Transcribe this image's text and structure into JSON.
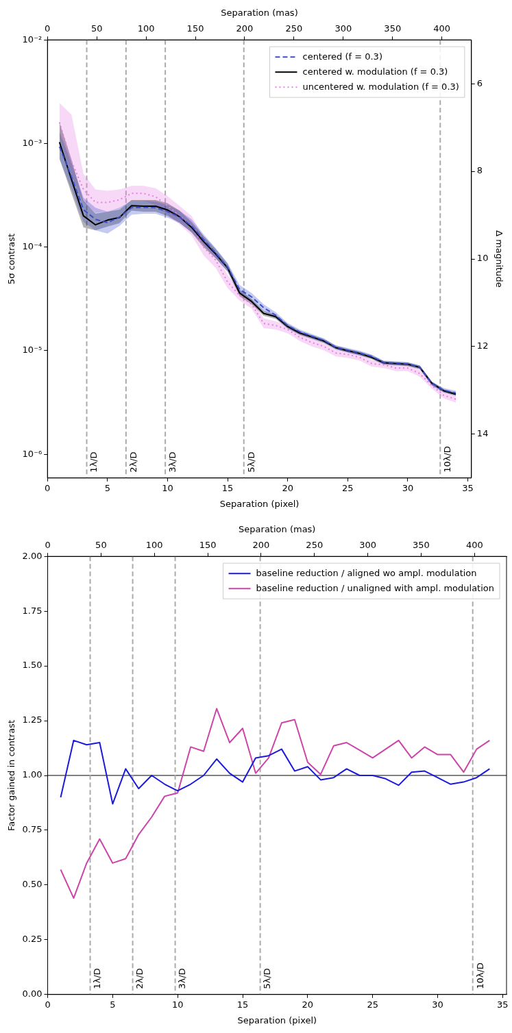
{
  "chart_data": [
    {
      "type": "line",
      "xlabel": "Separation (pixel)",
      "x2label": "Separation (mas)",
      "ylabel": "5σ contrast",
      "y2label": "Δ magnitude",
      "x": [
        1,
        2,
        3,
        4,
        5,
        6,
        7,
        8,
        9,
        10,
        11,
        12,
        13,
        14,
        15,
        16,
        17,
        18,
        19,
        20,
        21,
        22,
        23,
        24,
        25,
        26,
        27,
        28,
        29,
        30,
        31,
        32,
        33,
        34
      ],
      "xlim": [
        0,
        35.3
      ],
      "xticks": [
        0,
        5,
        10,
        15,
        20,
        25,
        30,
        35
      ],
      "x2lim": [
        0,
        430
      ],
      "x2ticks": [
        0,
        50,
        100,
        150,
        200,
        250,
        300,
        350,
        400
      ],
      "log": "y",
      "ylim": [
        5.9e-07,
        0.01
      ],
      "yticks": [
        {
          "value": 1e-06,
          "label": "10⁻⁶"
        },
        {
          "value": 1e-05,
          "label": "10⁻⁵"
        },
        {
          "value": 0.0001,
          "label": "10⁻⁴"
        },
        {
          "value": 0.001,
          "label": "10⁻³"
        },
        {
          "value": 0.01,
          "label": "10⁻²"
        }
      ],
      "y2lim": [
        15,
        5
      ],
      "y2ticks": [
        6,
        8,
        10,
        12,
        14
      ],
      "legend": "top right",
      "series": [
        {
          "name": "centered (f = 0.3)",
          "color": "#3a4fd0",
          "line_style": "dashed",
          "values": [
            0.00093,
            0.00048,
            0.00023,
            0.000185,
            0.000172,
            0.000195,
            0.00024,
            0.000242,
            0.00024,
            0.00022,
            0.000195,
            0.00016,
            0.000118,
            8.8e-05,
            6.4e-05,
            3.9e-05,
            3.3e-05,
            2.6e-05,
            2.2e-05,
            1.75e-05,
            1.52e-05,
            1.38e-05,
            1.26e-05,
            1.08e-05,
            1.01e-05,
            9.5e-06,
            8.8e-06,
            7.7e-06,
            7.6e-06,
            7.45e-06,
            6.95e-06,
            4.8e-06,
            4.15e-06,
            3.9e-06
          ],
          "upper": [
            0.0013,
            0.00065,
            0.0003,
            0.00024,
            0.00022,
            0.00024,
            0.00028,
            0.00028,
            0.000275,
            0.000255,
            0.000225,
            0.000185,
            0.000133,
            9.8e-05,
            7e-05,
            4.3e-05,
            3.6e-05,
            2.8e-05,
            2.35e-05,
            1.85e-05,
            1.6e-05,
            1.45e-05,
            1.32e-05,
            1.13e-05,
            1.06e-05,
            1e-05,
            9.2e-06,
            8e-06,
            7.9e-06,
            7.75e-06,
            7.2e-06,
            5e-06,
            4.35e-06,
            4.1e-06
          ],
          "lower": [
            0.0007,
            0.00036,
            0.000175,
            0.000145,
            0.000135,
            0.00016,
            0.000205,
            0.00021,
            0.00021,
            0.000192,
            0.00017,
            0.00014,
            0.000105,
            7.9e-05,
            5.8e-05,
            3.5e-05,
            3e-05,
            2.4e-05,
            2.05e-05,
            1.65e-05,
            1.44e-05,
            1.31e-05,
            1.2e-05,
            1.03e-05,
            9.6e-06,
            9e-06,
            8.4e-06,
            7.4e-06,
            7.3e-06,
            7.15e-06,
            6.7e-06,
            4.6e-06,
            3.95e-06,
            3.7e-06
          ]
        },
        {
          "name": "centered w. modulation (f = 0.3)",
          "color": "#000000",
          "line_style": "solid",
          "values": [
            0.00103,
            0.00045,
            0.0002,
            0.000164,
            0.000182,
            0.000193,
            0.000251,
            0.000248,
            0.000248,
            0.000228,
            0.000196,
            0.000155,
            0.000113,
            8.6e-05,
            6.3e-05,
            3.6e-05,
            2.98e-05,
            2.29e-05,
            2.13e-05,
            1.71e-05,
            1.48e-05,
            1.36e-05,
            1.24e-05,
            1.07e-05,
            1e-05,
            9.4e-06,
            8.6e-06,
            7.65e-06,
            7.5e-06,
            7.4e-06,
            6.9e-06,
            4.85e-06,
            4.1e-06,
            3.8e-06
          ],
          "upper": [
            0.0016,
            0.0007,
            0.00028,
            0.00021,
            0.00022,
            0.00023,
            0.000285,
            0.000285,
            0.000285,
            0.000265,
            0.000225,
            0.000175,
            0.000128,
            9.6e-05,
            6.9e-05,
            3.9e-05,
            3.15e-05,
            2.42e-05,
            2.24e-05,
            1.8e-05,
            1.55e-05,
            1.42e-05,
            1.3e-05,
            1.12e-05,
            1.04e-05,
            9.8e-06,
            9e-06,
            7.95e-06,
            7.8e-06,
            7.7e-06,
            7.2e-06,
            5.05e-06,
            4.25e-06,
            3.95e-06
          ],
          "lower": [
            0.00072,
            0.00033,
            0.000155,
            0.000145,
            0.000158,
            0.00017,
            0.000225,
            0.00022,
            0.00022,
            0.0002,
            0.000172,
            0.000138,
            0.0001,
            7.8e-05,
            5.8e-05,
            3.35e-05,
            2.8e-05,
            2.17e-05,
            2.03e-05,
            1.63e-05,
            1.42e-05,
            1.3e-05,
            1.19e-05,
            1.03e-05,
            9.6e-06,
            9e-06,
            8.25e-06,
            7.35e-06,
            7.2e-06,
            7.1e-06,
            6.6e-06,
            4.65e-06,
            3.95e-06,
            3.65e-06
          ]
        },
        {
          "name": "uncentered w. modulation (f = 0.3)",
          "color": "#e67ee6",
          "line_style": "dotted",
          "values": [
            0.0016,
            0.00067,
            0.00036,
            0.00027,
            0.00027,
            0.000286,
            0.00033,
            0.00033,
            0.000306,
            0.00025,
            0.0002,
            0.00016,
            0.0001,
            7.5e-05,
            4.6e-05,
            3.4e-05,
            2.8e-05,
            1.83e-05,
            1.75e-05,
            1.6e-05,
            1.35e-05,
            1.2e-05,
            1.1e-05,
            9.5e-06,
            9.2e-06,
            8.6e-06,
            7.5e-06,
            7.3e-06,
            6.8e-06,
            6.8e-06,
            6e-06,
            4.6e-06,
            3.7e-06,
            3.4e-06
          ],
          "upper": [
            0.00246,
            0.0019,
            0.00051,
            0.00036,
            0.00035,
            0.00036,
            0.00039,
            0.00039,
            0.00037,
            0.00031,
            0.00025,
            0.0002,
            0.000125,
            9e-05,
            5.4e-05,
            3.8e-05,
            3.1e-05,
            2.05e-05,
            1.92e-05,
            1.75e-05,
            1.48e-05,
            1.31e-05,
            1.2e-05,
            1.03e-05,
            9.9e-06,
            9.3e-06,
            8.1e-06,
            7.8e-06,
            7.3e-06,
            7.3e-06,
            6.5e-06,
            4.9e-06,
            3.95e-06,
            3.65e-06
          ],
          "lower": [
            0.00115,
            0.0005,
            0.00027,
            0.000215,
            0.00022,
            0.000235,
            0.00028,
            0.00028,
            0.000255,
            0.000205,
            0.000165,
            0.00013,
            8.3e-05,
            6.3e-05,
            4e-05,
            3.05e-05,
            2.55e-05,
            1.65e-05,
            1.6e-05,
            1.47e-05,
            1.24e-05,
            1.1e-05,
            1.01e-05,
            8.8e-06,
            8.5e-06,
            8e-06,
            7e-06,
            6.8e-06,
            6.35e-06,
            6.35e-06,
            5.6e-06,
            4.3e-06,
            3.45e-06,
            3.15e-06
          ]
        }
      ],
      "ref_lines": [
        {
          "axis": "x",
          "value": 3.27,
          "label": "1λ/D",
          "color": "#aaaaaa",
          "line_style": "dashed"
        },
        {
          "axis": "x",
          "value": 6.54,
          "label": "2λ/D",
          "color": "#aaaaaa",
          "line_style": "dashed"
        },
        {
          "axis": "x",
          "value": 9.81,
          "label": "3λ/D",
          "color": "#aaaaaa",
          "line_style": "dashed"
        },
        {
          "axis": "x",
          "value": 16.35,
          "label": "5λ/D",
          "color": "#aaaaaa",
          "line_style": "dashed"
        },
        {
          "axis": "x",
          "value": 32.7,
          "label": "10λ/D",
          "color": "#aaaaaa",
          "line_style": "dashed"
        }
      ]
    },
    {
      "type": "line",
      "xlabel": "Separation (pixel)",
      "x2label": "Separation (mas)",
      "ylabel": "Factor gained in contrast",
      "x": [
        1,
        2,
        3,
        4,
        5,
        6,
        7,
        8,
        9,
        10,
        11,
        12,
        13,
        14,
        15,
        16,
        17,
        18,
        19,
        20,
        21,
        22,
        23,
        24,
        25,
        26,
        27,
        28,
        29,
        30,
        31,
        32,
        33,
        34
      ],
      "xlim": [
        0,
        35.3
      ],
      "xticks": [
        0,
        5,
        10,
        15,
        20,
        25,
        30,
        35
      ],
      "x2lim": [
        0,
        430
      ],
      "x2ticks": [
        0,
        50,
        100,
        150,
        200,
        250,
        300,
        350,
        400
      ],
      "ylim": [
        0,
        2
      ],
      "yticks": [
        {
          "value": 0,
          "label": "0.00"
        },
        {
          "value": 0.25,
          "label": "0.25"
        },
        {
          "value": 0.5,
          "label": "0.50"
        },
        {
          "value": 0.75,
          "label": "0.75"
        },
        {
          "value": 1,
          "label": "1.00"
        },
        {
          "value": 1.25,
          "label": "1.25"
        },
        {
          "value": 1.5,
          "label": "1.50"
        },
        {
          "value": 1.75,
          "label": "1.75"
        },
        {
          "value": 2,
          "label": "2.00"
        }
      ],
      "legend": "top right",
      "series": [
        {
          "name": "baseline reduction / aligned wo ampl. modulation",
          "color": "#1a1adb",
          "line_style": "solid",
          "values": [
            0.9,
            1.16,
            1.14,
            1.15,
            0.87,
            1.03,
            0.94,
            1.0,
            0.96,
            0.93,
            0.96,
            1.0,
            1.075,
            1.01,
            0.97,
            1.08,
            1.09,
            1.12,
            1.02,
            1.04,
            0.98,
            0.99,
            1.03,
            1.0,
            1.0,
            0.985,
            0.955,
            1.015,
            1.02,
            0.99,
            0.96,
            0.97,
            0.99,
            1.03
          ]
        },
        {
          "name": "baseline reduction / unaligned with ampl. modulation",
          "color": "#cc44aa",
          "line_style": "solid",
          "values": [
            0.57,
            0.44,
            0.6,
            0.71,
            0.6,
            0.62,
            0.73,
            0.81,
            0.905,
            0.92,
            1.13,
            1.11,
            1.305,
            1.15,
            1.215,
            1.01,
            1.08,
            1.24,
            1.255,
            1.06,
            1.005,
            1.135,
            1.15,
            1.115,
            1.08,
            1.12,
            1.16,
            1.08,
            1.13,
            1.095,
            1.095,
            1.015,
            1.12,
            1.16
          ]
        }
      ],
      "ref_lines": [
        {
          "axis": "y",
          "value": 1,
          "color": "#808080",
          "line_style": "solid"
        },
        {
          "axis": "x",
          "value": 3.27,
          "label": "1λ/D",
          "color": "#aaaaaa",
          "line_style": "dashed"
        },
        {
          "axis": "x",
          "value": 6.54,
          "label": "2λ/D",
          "color": "#aaaaaa",
          "line_style": "dashed"
        },
        {
          "axis": "x",
          "value": 9.81,
          "label": "3λ/D",
          "color": "#aaaaaa",
          "line_style": "dashed"
        },
        {
          "axis": "x",
          "value": 16.35,
          "label": "5λ/D",
          "color": "#aaaaaa",
          "line_style": "dashed"
        },
        {
          "axis": "x",
          "value": 32.7,
          "label": "10λ/D",
          "color": "#aaaaaa",
          "line_style": "dashed"
        }
      ]
    }
  ]
}
